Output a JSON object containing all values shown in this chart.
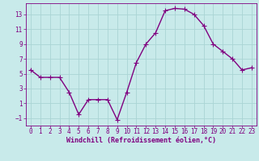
{
  "hours": [
    0,
    1,
    2,
    3,
    4,
    5,
    6,
    7,
    8,
    9,
    10,
    11,
    12,
    13,
    14,
    15,
    16,
    17,
    18,
    19,
    20,
    21,
    22,
    23
  ],
  "values": [
    5.5,
    4.5,
    4.5,
    4.5,
    2.5,
    -0.5,
    1.5,
    1.5,
    1.5,
    -1.2,
    2.5,
    6.5,
    9.0,
    10.5,
    13.5,
    13.8,
    13.7,
    13.0,
    11.5,
    9.0,
    8.0,
    7.0,
    5.5,
    5.8
  ],
  "line_color": "#800080",
  "marker_color": "#800080",
  "bg_color": "#c8eaea",
  "grid_color": "#aad4d4",
  "xlabel": "Windchill (Refroidissement éolien,°C)",
  "xlim": [
    -0.5,
    23.5
  ],
  "ylim": [
    -2.0,
    14.5
  ],
  "yticks": [
    -1,
    1,
    3,
    5,
    7,
    9,
    11,
    13
  ],
  "xticks": [
    0,
    1,
    2,
    3,
    4,
    5,
    6,
    7,
    8,
    9,
    10,
    11,
    12,
    13,
    14,
    15,
    16,
    17,
    18,
    19,
    20,
    21,
    22,
    23
  ],
  "tick_color": "#800080",
  "label_color": "#800080",
  "tick_labelsize": 5.5,
  "xlabel_fontsize": 6.0,
  "line_width": 1.0,
  "marker_size": 2.5
}
